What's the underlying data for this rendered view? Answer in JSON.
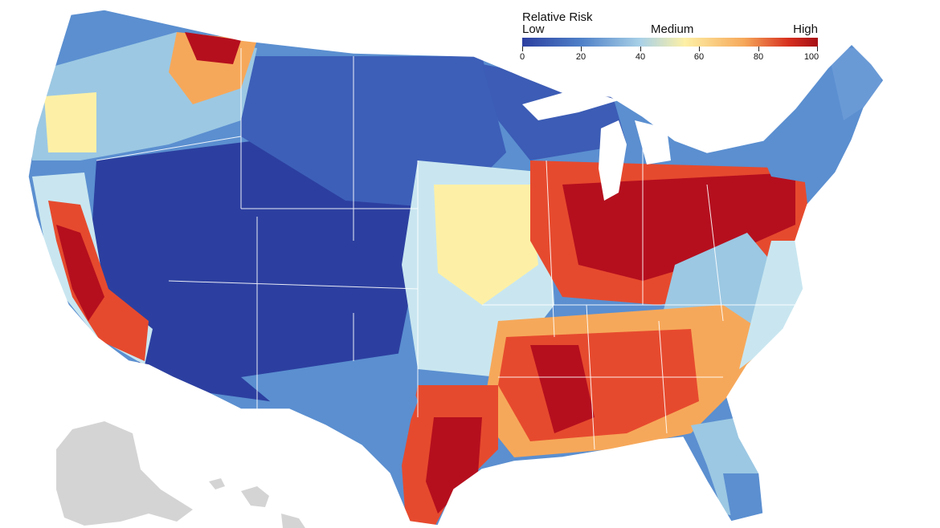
{
  "map": {
    "region": "United States",
    "colors": {
      "low": "#2c3fa0",
      "mid_low": "#5b8fd0",
      "light": "#bfe0ec",
      "medium": "#fdf0a6",
      "mid_high": "#f6a85a",
      "high": "#e64a2e",
      "very_high": "#b50f1e",
      "border": "#ffffff",
      "background_land": "#d4d4d4"
    }
  },
  "legend": {
    "title": "Relative Risk",
    "levels": {
      "low": "Low",
      "medium": "Medium",
      "high": "High"
    },
    "ticks": [
      "0",
      "20",
      "40",
      "60",
      "80",
      "100"
    ],
    "range": [
      0,
      100
    ],
    "gradient": [
      "#2c3fa0",
      "#4f80c8",
      "#a9d1e7",
      "#fdf0a6",
      "#f6a85a",
      "#d7301f",
      "#a50f15"
    ]
  }
}
